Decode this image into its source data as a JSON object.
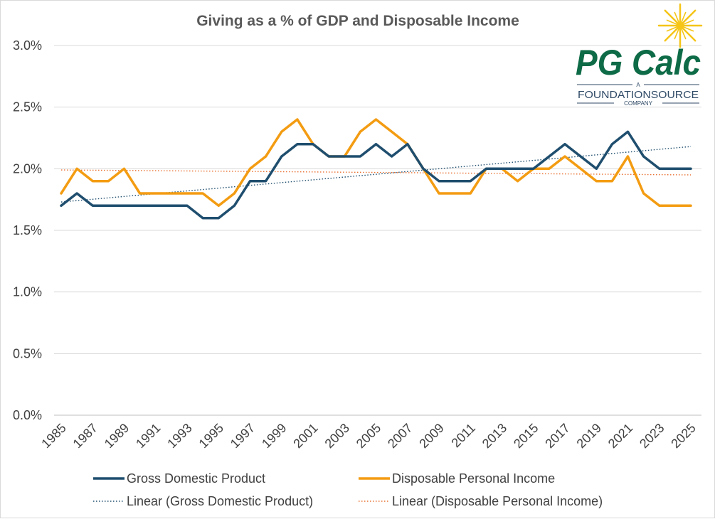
{
  "chart_data": {
    "type": "line",
    "title": "Giving as a % of GDP and Disposable Income",
    "xlabel": "",
    "ylabel": "",
    "ylim": [
      0,
      3.0
    ],
    "y_ticks": [
      "0.0%",
      "0.5%",
      "1.0%",
      "1.5%",
      "2.0%",
      "2.5%",
      "3.0%"
    ],
    "x": [
      1985,
      1986,
      1987,
      1988,
      1989,
      1990,
      1991,
      1992,
      1993,
      1994,
      1995,
      1996,
      1997,
      1998,
      1999,
      2000,
      2001,
      2002,
      2003,
      2004,
      2005,
      2006,
      2007,
      2008,
      2009,
      2010,
      2011,
      2012,
      2013,
      2014,
      2015,
      2016,
      2017,
      2018,
      2019,
      2020,
      2021,
      2022,
      2023,
      2024,
      2025
    ],
    "x_tick_labels": [
      "1985",
      "1987",
      "1989",
      "1991",
      "1993",
      "1995",
      "1997",
      "1999",
      "2001",
      "2003",
      "2005",
      "2007",
      "2009",
      "2011",
      "2013",
      "2015",
      "2017",
      "2019",
      "2021",
      "2023",
      "2025"
    ],
    "grid": "horizontal",
    "legend_position": "bottom",
    "series": [
      {
        "name": "Gross Domestic Product",
        "color": "#1f4e6e",
        "values": [
          1.7,
          1.8,
          1.7,
          1.7,
          1.7,
          1.7,
          1.7,
          1.7,
          1.7,
          1.6,
          1.6,
          1.7,
          1.9,
          1.9,
          2.1,
          2.2,
          2.2,
          2.1,
          2.1,
          2.1,
          2.2,
          2.1,
          2.2,
          2.0,
          1.9,
          1.9,
          1.9,
          2.0,
          2.0,
          2.0,
          2.0,
          2.1,
          2.2,
          2.1,
          2.0,
          2.2,
          2.3,
          2.1,
          2.0,
          2.0,
          2.0
        ]
      },
      {
        "name": "Disposable Personal Income",
        "color": "#f39c12",
        "values": [
          1.8,
          2.0,
          1.9,
          1.9,
          2.0,
          1.8,
          1.8,
          1.8,
          1.8,
          1.8,
          1.7,
          1.8,
          2.0,
          2.1,
          2.3,
          2.4,
          2.2,
          2.1,
          2.1,
          2.3,
          2.4,
          2.3,
          2.2,
          2.0,
          1.8,
          1.8,
          1.8,
          2.0,
          2.0,
          1.9,
          2.0,
          2.0,
          2.1,
          2.0,
          1.9,
          1.9,
          2.1,
          1.8,
          1.7,
          1.7,
          1.7
        ]
      }
    ],
    "trendlines": [
      {
        "name": "Linear (Gross Domestic Product)",
        "color": "#1f4e6e",
        "start": 1.73,
        "end": 2.18
      },
      {
        "name": "Linear (Disposable Personal Income)",
        "color": "#e97132",
        "start": 1.99,
        "end": 1.95
      }
    ]
  },
  "logo": {
    "name": "PG Calc",
    "tagline_a": "A",
    "tagline_main": "FOUNDATIONSOURCE",
    "tagline_sub": "COMPANY",
    "sun_color": "#f5c518"
  }
}
